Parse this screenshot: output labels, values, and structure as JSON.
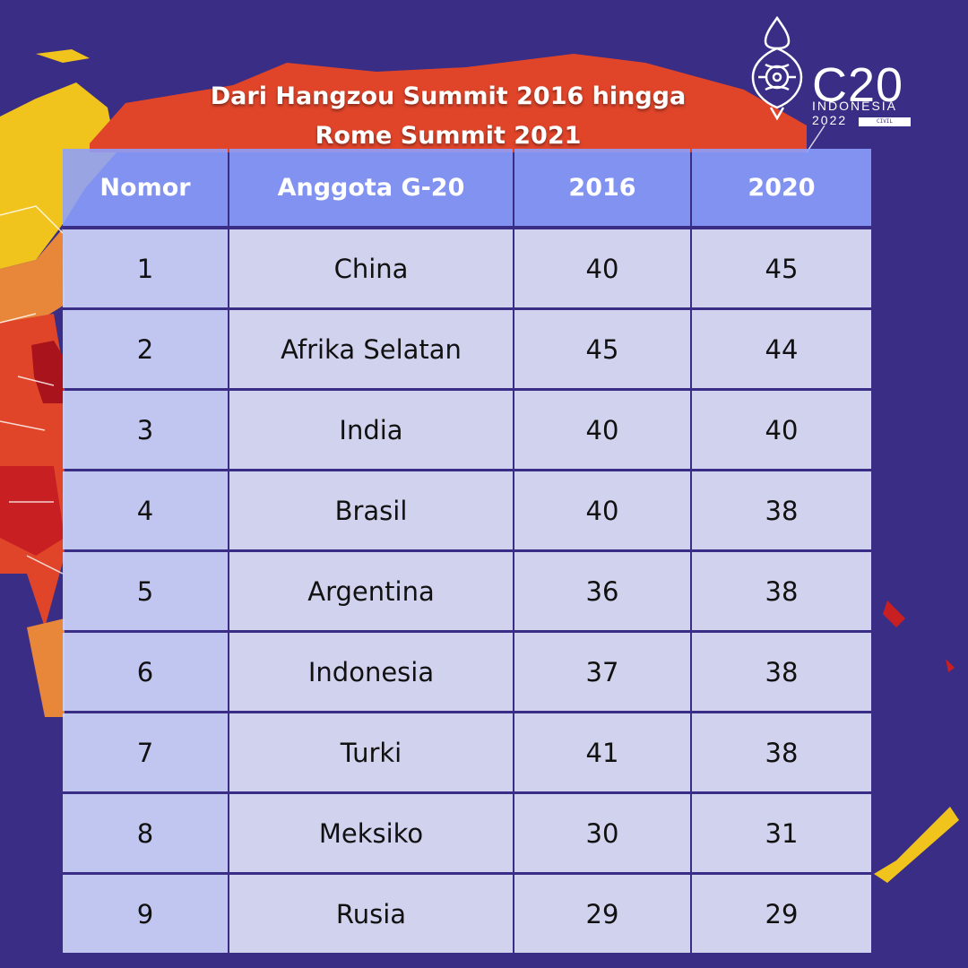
{
  "title": {
    "line1": "Dari Hangzou Summit 2016 hingga",
    "line2": "Rome Summit 2021"
  },
  "logo": {
    "name": "C20",
    "country": "INDONESIA",
    "year": "2022",
    "tag": "CIVIL"
  },
  "table": {
    "headers": [
      "Nomor",
      "Anggota G-20",
      "2016",
      "2020"
    ],
    "rows": [
      [
        "1",
        "China",
        "40",
        "45"
      ],
      [
        "2",
        "Afrika Selatan",
        "45",
        "44"
      ],
      [
        "3",
        "India",
        "40",
        "40"
      ],
      [
        "4",
        "Brasil",
        "40",
        "38"
      ],
      [
        "5",
        "Argentina",
        "36",
        "38"
      ],
      [
        "6",
        "Indonesia",
        "37",
        "38"
      ],
      [
        "7",
        "Turki",
        "41",
        "38"
      ],
      [
        "8",
        "Meksiko",
        "30",
        "31"
      ],
      [
        "9",
        "Rusia",
        "29",
        "29"
      ]
    ]
  },
  "colors": {
    "background": "#3a2d85",
    "header": "#8ca0ff",
    "map_red": "#e0452a",
    "map_orange": "#e8863a",
    "map_yellow": "#f0c41c",
    "map_darkred": "#a8131c"
  }
}
